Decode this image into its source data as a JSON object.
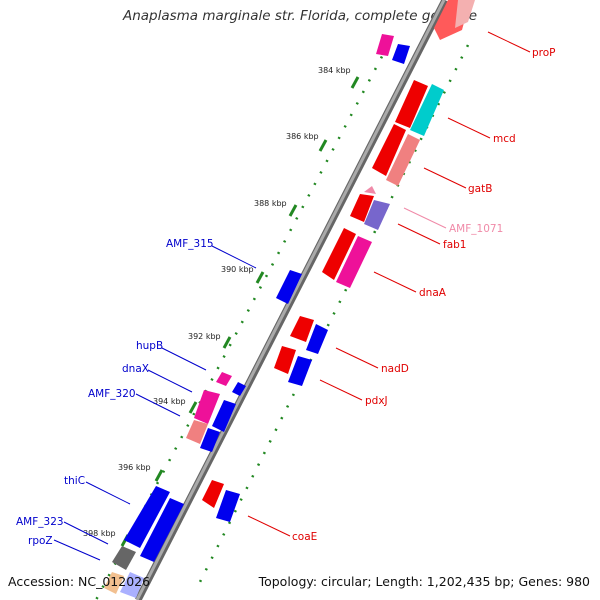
{
  "title": "Anaplasma marginale str. Florida, complete genome",
  "footer": {
    "accession": "Accession: NC_012026",
    "summary": "Topology: circular; Length: 1,202,435 bp; Genes: 980"
  },
  "ticks": [
    "384 kbp",
    "386 kbp",
    "388 kbp",
    "390 kbp",
    "392 kbp",
    "394 kbp",
    "396 kbp",
    "398 kbp"
  ],
  "labels_right": [
    {
      "name": "proP",
      "color": "#e00000"
    },
    {
      "name": "mcd",
      "color": "#e00000"
    },
    {
      "name": "gatB",
      "color": "#e00000"
    },
    {
      "name": "AMF_1071",
      "color": "#f08aa8"
    },
    {
      "name": "fab1",
      "color": "#e00000"
    },
    {
      "name": "dnaA",
      "color": "#e00000"
    },
    {
      "name": "nadD",
      "color": "#e00000"
    },
    {
      "name": "pdxJ",
      "color": "#e00000"
    },
    {
      "name": "coaE",
      "color": "#e00000"
    }
  ],
  "labels_left": [
    {
      "name": "AMF_315",
      "color": "#0000cc"
    },
    {
      "name": "hupB",
      "color": "#0000cc"
    },
    {
      "name": "dnaX",
      "color": "#0000cc"
    },
    {
      "name": "AMF_320",
      "color": "#0000cc"
    },
    {
      "name": "thiC",
      "color": "#0000cc"
    },
    {
      "name": "AMF_323",
      "color": "#0000cc"
    },
    {
      "name": "rpoZ",
      "color": "#0000cc"
    }
  ],
  "colors": {
    "red": "#ee0000",
    "blue": "#0000ee",
    "pink": "#ee1199",
    "cyan": "#00cccc",
    "salmon": "#f08080",
    "lavender": "#7766cc",
    "backbone": "#888888",
    "ticks": "#228822"
  }
}
